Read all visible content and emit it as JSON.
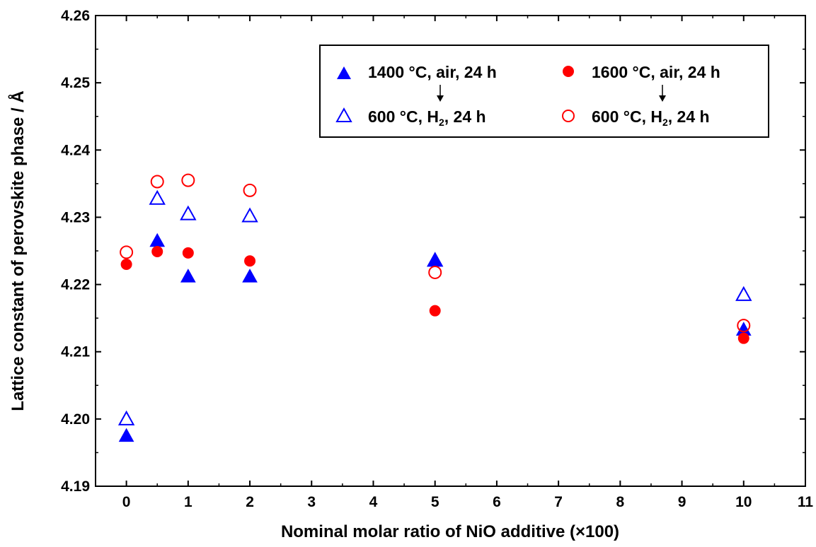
{
  "chart_data": {
    "type": "scatter",
    "title": "",
    "xlabel": "Nominal molar ratio of NiO additive (×100)",
    "ylabel": "Lattice constant of perovskite phase / Å",
    "xlim": [
      -0.5,
      11
    ],
    "ylim": [
      4.19,
      4.26
    ],
    "x_ticks": [
      0,
      1,
      2,
      3,
      4,
      5,
      6,
      7,
      8,
      9,
      10,
      11
    ],
    "y_ticks": [
      4.19,
      4.2,
      4.21,
      4.22,
      4.23,
      4.24,
      4.25,
      4.26
    ],
    "y_tick_labels": [
      "4.19",
      "4.20",
      "4.21",
      "4.22",
      "4.23",
      "4.24",
      "4.25",
      "4.26"
    ],
    "grid": false,
    "legend_position": "top-right",
    "legend": {
      "col1_top": "1400 °C, air, 24 h",
      "col1_bottom_prefix": "600 °C, H",
      "col1_bottom_sub": "2",
      "col1_bottom_suffix": ", 24 h",
      "col2_top": "1600 °C, air, 24 h",
      "col2_bottom_prefix": "600 °C, H",
      "col2_bottom_sub": "2",
      "col2_bottom_suffix": ", 24 h"
    },
    "series": [
      {
        "legend_ref": "col1_top",
        "marker": "filled-triangle",
        "color": "#0000ff",
        "points": [
          [
            0,
            4.1975
          ],
          [
            0.5,
            4.2265
          ],
          [
            1,
            4.2212
          ],
          [
            2,
            4.2212
          ],
          [
            5,
            4.2236
          ],
          [
            10,
            4.2133
          ]
        ]
      },
      {
        "legend_ref": "col1_bottom",
        "marker": "open-triangle",
        "color": "#0000ff",
        "points": [
          [
            0,
            4.2
          ],
          [
            0.5,
            4.2328
          ],
          [
            1,
            4.2305
          ],
          [
            2,
            4.2302
          ],
          [
            5,
            4.2236
          ],
          [
            10,
            4.2185
          ]
        ]
      },
      {
        "legend_ref": "col2_top",
        "marker": "filled-circle",
        "color": "#ff0000",
        "points": [
          [
            0,
            4.223
          ],
          [
            0.5,
            4.2249
          ],
          [
            1,
            4.2247
          ],
          [
            2,
            4.2235
          ],
          [
            5,
            4.2161
          ],
          [
            10,
            4.212
          ]
        ]
      },
      {
        "legend_ref": "col2_bottom",
        "marker": "open-circle",
        "color": "#ff0000",
        "points": [
          [
            0,
            4.2248
          ],
          [
            0.5,
            4.2353
          ],
          [
            1,
            4.2355
          ],
          [
            2,
            4.234
          ],
          [
            5,
            4.2218
          ],
          [
            10,
            4.2139
          ]
        ]
      }
    ]
  }
}
